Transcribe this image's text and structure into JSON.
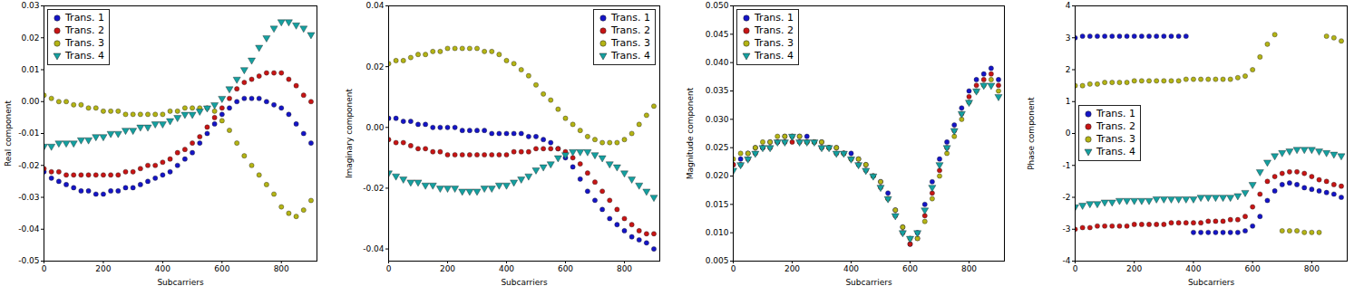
{
  "chart_data": [
    {
      "type": "scatter",
      "xlabel": "Subcarriers",
      "ylabel": "Real component",
      "x": [
        0,
        25,
        50,
        75,
        100,
        125,
        150,
        175,
        200,
        225,
        250,
        275,
        300,
        325,
        350,
        375,
        400,
        425,
        450,
        475,
        500,
        525,
        550,
        575,
        600,
        625,
        650,
        675,
        700,
        725,
        750,
        775,
        800,
        825,
        850,
        875,
        900
      ],
      "xlim": [
        0,
        920
      ],
      "xticks": [
        0,
        200,
        400,
        600,
        800
      ],
      "ylim": [
        -0.05,
        0.03
      ],
      "yticks": [
        -0.05,
        -0.04,
        -0.03,
        -0.02,
        -0.01,
        {
          "value": 0,
          "label": "0.00"
        },
        0.01,
        0.02,
        0.03
      ],
      "grid": false,
      "legend": "upper left",
      "series": [
        {
          "name": "Trans. 1",
          "color": "#1414c8",
          "marker": "circle",
          "values": [
            -0.022,
            -0.024,
            -0.025,
            -0.026,
            -0.027,
            -0.028,
            -0.028,
            -0.029,
            -0.029,
            -0.028,
            -0.028,
            -0.027,
            -0.027,
            -0.026,
            -0.025,
            -0.024,
            -0.023,
            -0.022,
            -0.02,
            -0.018,
            -0.016,
            -0.013,
            -0.01,
            -0.007,
            -0.004,
            -0.002,
            0.0,
            0.001,
            0.001,
            0.001,
            0.0,
            -0.001,
            -0.002,
            -0.004,
            -0.007,
            -0.01,
            -0.013
          ]
        },
        {
          "name": "Trans. 2",
          "color": "#c81414",
          "marker": "circle",
          "values": [
            -0.021,
            -0.022,
            -0.022,
            -0.023,
            -0.023,
            -0.023,
            -0.023,
            -0.023,
            -0.023,
            -0.023,
            -0.023,
            -0.022,
            -0.022,
            -0.021,
            -0.02,
            -0.02,
            -0.019,
            -0.018,
            -0.016,
            -0.015,
            -0.013,
            -0.011,
            -0.008,
            -0.005,
            -0.002,
            0.001,
            0.004,
            0.006,
            0.007,
            0.008,
            0.009,
            0.009,
            0.009,
            0.007,
            0.005,
            0.002,
            0.0
          ]
        },
        {
          "name": "Trans. 3",
          "color": "#b4b414",
          "marker": "circle",
          "values": [
            0.002,
            0.001,
            0.0,
            0.0,
            -0.001,
            -0.001,
            -0.002,
            -0.002,
            -0.003,
            -0.003,
            -0.003,
            -0.004,
            -0.004,
            -0.004,
            -0.004,
            -0.004,
            -0.004,
            -0.003,
            -0.003,
            -0.002,
            -0.002,
            -0.002,
            -0.002,
            -0.003,
            -0.006,
            -0.009,
            -0.013,
            -0.017,
            -0.02,
            -0.023,
            -0.026,
            -0.029,
            -0.033,
            -0.035,
            -0.036,
            -0.034,
            -0.031
          ]
        },
        {
          "name": "Trans. 4",
          "color": "#14a0a0",
          "marker": "triangle_down",
          "values": [
            -0.014,
            -0.014,
            -0.013,
            -0.013,
            -0.013,
            -0.012,
            -0.012,
            -0.011,
            -0.011,
            -0.01,
            -0.01,
            -0.009,
            -0.009,
            -0.008,
            -0.008,
            -0.007,
            -0.007,
            -0.006,
            -0.005,
            -0.004,
            -0.004,
            -0.003,
            -0.002,
            -0.001,
            0.001,
            0.004,
            0.007,
            0.01,
            0.013,
            0.017,
            0.02,
            0.023,
            0.025,
            0.025,
            0.024,
            0.023,
            0.021
          ]
        }
      ]
    },
    {
      "type": "scatter",
      "xlabel": "Subcarriers",
      "ylabel": "Imaginary component",
      "x": [
        0,
        25,
        50,
        75,
        100,
        125,
        150,
        175,
        200,
        225,
        250,
        275,
        300,
        325,
        350,
        375,
        400,
        425,
        450,
        475,
        500,
        525,
        550,
        575,
        600,
        625,
        650,
        675,
        700,
        725,
        750,
        775,
        800,
        825,
        850,
        875,
        900
      ],
      "xlim": [
        0,
        920
      ],
      "xticks": [
        0,
        200,
        400,
        600,
        800
      ],
      "ylim": [
        -0.044,
        0.04
      ],
      "yticks": [
        -0.04,
        -0.02,
        {
          "value": 0,
          "label": "0.00"
        },
        0.02,
        0.04
      ],
      "grid": false,
      "legend": "upper right",
      "series": [
        {
          "name": "Trans. 1",
          "color": "#1414c8",
          "marker": "circle",
          "values": [
            0.003,
            0.003,
            0.002,
            0.002,
            0.001,
            0.001,
            0.0,
            0.0,
            0.0,
            0.0,
            -0.001,
            -0.001,
            -0.001,
            -0.001,
            -0.002,
            -0.002,
            -0.002,
            -0.002,
            -0.002,
            -0.003,
            -0.003,
            -0.004,
            -0.005,
            -0.007,
            -0.01,
            -0.013,
            -0.017,
            -0.021,
            -0.024,
            -0.027,
            -0.03,
            -0.032,
            -0.034,
            -0.036,
            -0.037,
            -0.038,
            -0.04
          ]
        },
        {
          "name": "Trans. 2",
          "color": "#c81414",
          "marker": "circle",
          "values": [
            -0.004,
            -0.005,
            -0.005,
            -0.006,
            -0.007,
            -0.007,
            -0.008,
            -0.008,
            -0.009,
            -0.009,
            -0.009,
            -0.009,
            -0.009,
            -0.009,
            -0.009,
            -0.009,
            -0.009,
            -0.008,
            -0.008,
            -0.008,
            -0.007,
            -0.007,
            -0.007,
            -0.007,
            -0.008,
            -0.01,
            -0.012,
            -0.015,
            -0.018,
            -0.021,
            -0.024,
            -0.027,
            -0.03,
            -0.032,
            -0.034,
            -0.035,
            -0.035
          ]
        },
        {
          "name": "Trans. 3",
          "color": "#b4b414",
          "marker": "circle",
          "values": [
            0.021,
            0.022,
            0.022,
            0.023,
            0.024,
            0.024,
            0.025,
            0.025,
            0.026,
            0.026,
            0.026,
            0.026,
            0.026,
            0.025,
            0.025,
            0.024,
            0.022,
            0.021,
            0.019,
            0.017,
            0.014,
            0.011,
            0.009,
            0.006,
            0.003,
            0.001,
            -0.001,
            -0.003,
            -0.004,
            -0.005,
            -0.005,
            -0.005,
            -0.004,
            -0.002,
            0.001,
            0.004,
            0.007
          ]
        },
        {
          "name": "Trans. 4",
          "color": "#14a0a0",
          "marker": "triangle_down",
          "values": [
            -0.015,
            -0.016,
            -0.017,
            -0.018,
            -0.018,
            -0.019,
            -0.019,
            -0.02,
            -0.02,
            -0.02,
            -0.021,
            -0.021,
            -0.021,
            -0.02,
            -0.02,
            -0.019,
            -0.019,
            -0.018,
            -0.017,
            -0.016,
            -0.014,
            -0.013,
            -0.012,
            -0.01,
            -0.009,
            -0.008,
            -0.008,
            -0.008,
            -0.009,
            -0.01,
            -0.012,
            -0.013,
            -0.015,
            -0.017,
            -0.019,
            -0.021,
            -0.023
          ]
        }
      ]
    },
    {
      "type": "scatter",
      "xlabel": "Subcarriers",
      "ylabel": "Magnitude component",
      "x": [
        0,
        25,
        50,
        75,
        100,
        125,
        150,
        175,
        200,
        225,
        250,
        275,
        300,
        325,
        350,
        375,
        400,
        425,
        450,
        475,
        500,
        525,
        550,
        575,
        600,
        625,
        650,
        675,
        700,
        725,
        750,
        775,
        800,
        825,
        850,
        875,
        900
      ],
      "xlim": [
        0,
        920
      ],
      "xticks": [
        0,
        200,
        400,
        600,
        800
      ],
      "ylim": [
        0.005,
        0.05
      ],
      "yticks": [
        0.005,
        {
          "value": 0.01,
          "label": "0.010"
        },
        0.015,
        {
          "value": 0.02,
          "label": "0.020"
        },
        0.025,
        {
          "value": 0.03,
          "label": "0.030"
        },
        0.035,
        {
          "value": 0.04,
          "label": "0.040"
        },
        0.045,
        {
          "value": 0.05,
          "label": "0.050"
        }
      ],
      "grid": false,
      "legend": "upper left",
      "series": [
        {
          "name": "Trans. 1",
          "color": "#1414c8",
          "marker": "circle",
          "values": [
            0.022,
            0.023,
            0.024,
            0.025,
            0.025,
            0.026,
            0.026,
            0.027,
            0.027,
            0.027,
            0.027,
            0.026,
            0.026,
            0.025,
            0.025,
            0.024,
            0.024,
            0.023,
            0.022,
            0.02,
            0.019,
            0.017,
            0.014,
            0.011,
            0.008,
            0.01,
            0.015,
            0.019,
            0.023,
            0.026,
            0.029,
            0.032,
            0.035,
            0.037,
            0.038,
            0.039,
            0.037
          ]
        },
        {
          "name": "Trans. 2",
          "color": "#c81414",
          "marker": "circle",
          "values": [
            0.022,
            0.022,
            0.023,
            0.024,
            0.025,
            0.025,
            0.026,
            0.026,
            0.026,
            0.026,
            0.026,
            0.026,
            0.025,
            0.025,
            0.024,
            0.024,
            0.023,
            0.022,
            0.021,
            0.02,
            0.018,
            0.016,
            0.013,
            0.01,
            0.008,
            0.009,
            0.013,
            0.017,
            0.021,
            0.025,
            0.028,
            0.031,
            0.034,
            0.036,
            0.037,
            0.038,
            0.036
          ]
        },
        {
          "name": "Trans. 3",
          "color": "#b4b414",
          "marker": "circle",
          "values": [
            0.023,
            0.024,
            0.024,
            0.025,
            0.026,
            0.026,
            0.027,
            0.027,
            0.027,
            0.027,
            0.026,
            0.026,
            0.026,
            0.025,
            0.025,
            0.024,
            0.023,
            0.023,
            0.022,
            0.02,
            0.019,
            0.016,
            0.014,
            0.011,
            0.009,
            0.009,
            0.012,
            0.016,
            0.02,
            0.024,
            0.027,
            0.03,
            0.033,
            0.035,
            0.036,
            0.037,
            0.035
          ]
        },
        {
          "name": "Trans. 4",
          "color": "#14a0a0",
          "marker": "triangle_down",
          "values": [
            0.021,
            0.022,
            0.023,
            0.024,
            0.025,
            0.025,
            0.026,
            0.026,
            0.027,
            0.026,
            0.026,
            0.026,
            0.025,
            0.025,
            0.024,
            0.024,
            0.023,
            0.022,
            0.021,
            0.02,
            0.018,
            0.016,
            0.013,
            0.01,
            0.009,
            0.01,
            0.014,
            0.018,
            0.022,
            0.025,
            0.028,
            0.031,
            0.033,
            0.035,
            0.036,
            0.036,
            0.034
          ]
        }
      ]
    },
    {
      "type": "scatter",
      "xlabel": "Subcarriers",
      "ylabel": "Phase component",
      "x": [
        0,
        25,
        50,
        75,
        100,
        125,
        150,
        175,
        200,
        225,
        250,
        275,
        300,
        325,
        350,
        375,
        400,
        425,
        450,
        475,
        500,
        525,
        550,
        575,
        600,
        625,
        650,
        675,
        700,
        725,
        750,
        775,
        800,
        825,
        850,
        875,
        900
      ],
      "xlim": [
        0,
        920
      ],
      "xticks": [
        0,
        200,
        400,
        600,
        800
      ],
      "ylim": [
        -4,
        4
      ],
      "yticks": [
        -4,
        -3,
        -2,
        -1,
        0,
        1,
        2,
        3,
        4
      ],
      "grid": false,
      "legend": "center left",
      "series": [
        {
          "name": "Trans. 1",
          "color": "#1414c8",
          "marker": "circle",
          "values": [
            3.0,
            3.05,
            3.05,
            3.05,
            3.05,
            3.05,
            3.05,
            3.05,
            3.05,
            3.05,
            3.05,
            3.05,
            3.05,
            3.05,
            3.05,
            3.05,
            -3.1,
            -3.1,
            -3.1,
            -3.1,
            -3.1,
            -3.1,
            -3.1,
            -3.05,
            -2.9,
            -2.6,
            -2.1,
            -1.8,
            -1.6,
            -1.55,
            -1.6,
            -1.7,
            -1.75,
            -1.8,
            -1.85,
            -1.9,
            -2.0
          ]
        },
        {
          "name": "Trans. 2",
          "color": "#c81414",
          "marker": "circle",
          "values": [
            -3.0,
            -2.95,
            -2.95,
            -2.9,
            -2.9,
            -2.9,
            -2.9,
            -2.9,
            -2.85,
            -2.85,
            -2.85,
            -2.85,
            -2.85,
            -2.8,
            -2.8,
            -2.8,
            -2.8,
            -2.8,
            -2.75,
            -2.75,
            -2.75,
            -2.7,
            -2.7,
            -2.6,
            -2.3,
            -1.9,
            -1.5,
            -1.35,
            -1.25,
            -1.2,
            -1.2,
            -1.25,
            -1.35,
            -1.45,
            -1.5,
            -1.6,
            -1.65
          ]
        },
        {
          "name": "Trans. 3",
          "color": "#b4b414",
          "marker": "circle",
          "values": [
            1.5,
            1.5,
            1.55,
            1.55,
            1.6,
            1.6,
            1.6,
            1.6,
            1.65,
            1.65,
            1.65,
            1.65,
            1.65,
            1.65,
            1.65,
            1.7,
            1.7,
            1.7,
            1.7,
            1.7,
            1.7,
            1.7,
            1.75,
            1.8,
            2.0,
            2.4,
            2.8,
            3.1,
            -3.05,
            -3.05,
            -3.05,
            -3.1,
            -3.1,
            -3.1,
            3.05,
            3.0,
            2.9
          ]
        },
        {
          "name": "Trans. 4",
          "color": "#14a0a0",
          "marker": "triangle_down",
          "values": [
            -2.3,
            -2.25,
            -2.2,
            -2.2,
            -2.15,
            -2.15,
            -2.1,
            -2.1,
            -2.1,
            -2.1,
            -2.1,
            -2.05,
            -2.05,
            -2.05,
            -2.05,
            -2.05,
            -2.05,
            -2.0,
            -2.0,
            -2.0,
            -2.0,
            -2.0,
            -1.95,
            -1.85,
            -1.6,
            -1.2,
            -0.9,
            -0.7,
            -0.6,
            -0.55,
            -0.5,
            -0.5,
            -0.5,
            -0.55,
            -0.6,
            -0.65,
            -0.7
          ]
        }
      ]
    }
  ]
}
